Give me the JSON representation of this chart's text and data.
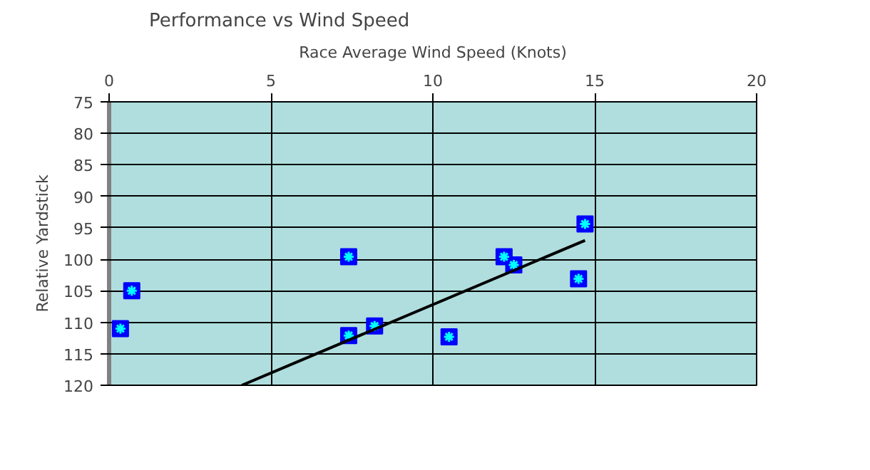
{
  "chart_data": {
    "type": "scatter",
    "title": "Performance vs Wind Speed",
    "xlabel": "Race Average Wind Speed (Knots)",
    "ylabel": "Relative Yardstick",
    "xlim": [
      0,
      20
    ],
    "xticks": [
      0,
      5,
      10,
      15,
      20
    ],
    "ylim": [
      120,
      75
    ],
    "yticks": [
      75,
      80,
      85,
      90,
      95,
      100,
      105,
      110,
      115,
      120
    ],
    "grid": true,
    "series": [
      {
        "color": "#0000ff",
        "marker": "square",
        "x": [
          0.35,
          0.7,
          7.4,
          7.4,
          8.2,
          10.5,
          12.2,
          12.5,
          14.5,
          14.7
        ],
        "values": [
          111,
          105,
          99.6,
          112.1,
          110.6,
          112.3,
          99.6,
          100.9,
          103.1,
          94.4
        ]
      },
      {
        "type": "line",
        "marker": "none",
        "color": "#000000",
        "x": [
          4.1,
          14.7
        ],
        "values": [
          120,
          97
        ]
      }
    ]
  }
}
